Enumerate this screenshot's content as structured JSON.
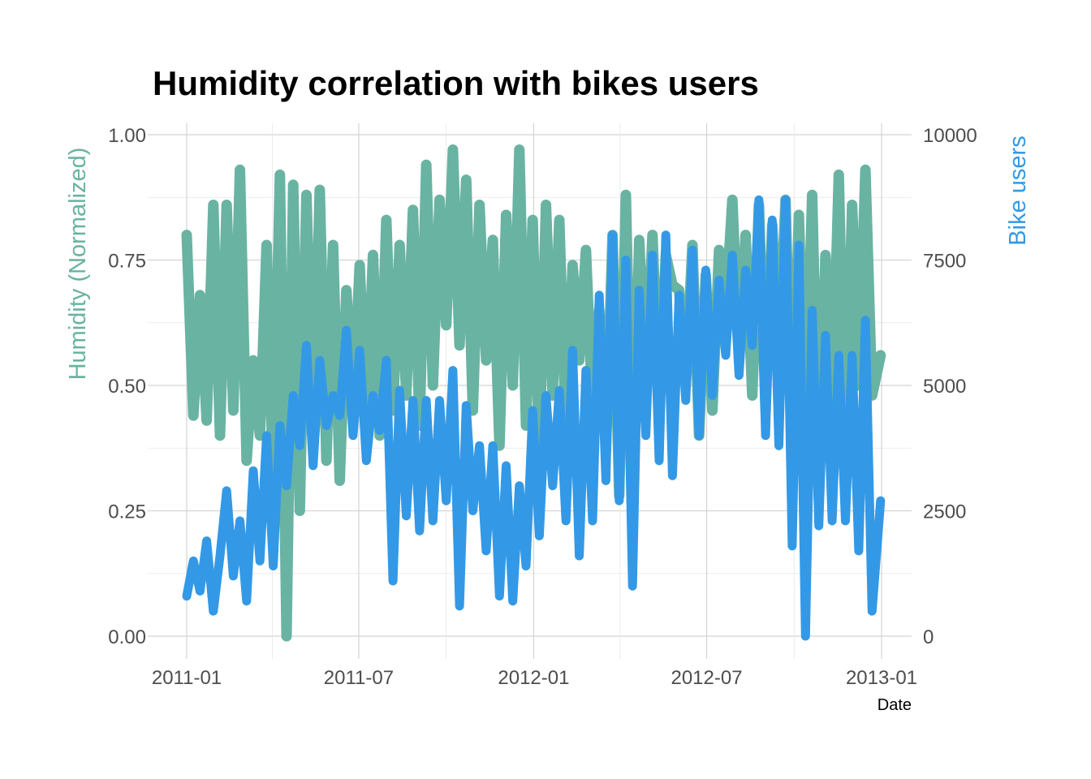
{
  "chart_data": {
    "type": "line",
    "title": "Humidity correlation with bikes users",
    "xlabel": "Date",
    "ylabel_left": "Humidity (Normalized)",
    "ylabel_right": "Bike users",
    "x_ticks": [
      "2011-01",
      "2011-07",
      "2012-01",
      "2012-07",
      "2013-01"
    ],
    "y_left_ticks": [
      "0.00",
      "0.25",
      "0.50",
      "0.75",
      "1.00"
    ],
    "y_right_ticks": [
      "0",
      "2500",
      "5000",
      "7500",
      "10000"
    ],
    "xlim": [
      "2011-01-01",
      "2013-01-01"
    ],
    "ylim_left": [
      0,
      1
    ],
    "ylim_right": [
      0,
      10000
    ],
    "grid": true,
    "colors": {
      "humidity": "#69b3a2",
      "bikes": "#3399e6",
      "right_axis_label": "#3399e6"
    },
    "series": [
      {
        "axis": "left",
        "color": "#69b3a2",
        "x": [
          "2011-01-01",
          "2011-01-08",
          "2011-01-15",
          "2011-01-22",
          "2011-01-29",
          "2011-02-05",
          "2011-02-12",
          "2011-02-19",
          "2011-02-26",
          "2011-03-05",
          "2011-03-12",
          "2011-03-19",
          "2011-03-26",
          "2011-04-02",
          "2011-04-09",
          "2011-04-16",
          "2011-04-23",
          "2011-04-30",
          "2011-05-07",
          "2011-05-14",
          "2011-05-21",
          "2011-05-28",
          "2011-06-04",
          "2011-06-11",
          "2011-06-18",
          "2011-06-25",
          "2011-07-02",
          "2011-07-09",
          "2011-07-16",
          "2011-07-23",
          "2011-07-30",
          "2011-08-06",
          "2011-08-13",
          "2011-08-20",
          "2011-08-27",
          "2011-09-03",
          "2011-09-10",
          "2011-09-17",
          "2011-09-24",
          "2011-10-01",
          "2011-10-08",
          "2011-10-15",
          "2011-10-22",
          "2011-10-29",
          "2011-11-05",
          "2011-11-12",
          "2011-11-19",
          "2011-11-26",
          "2011-12-03",
          "2011-12-10",
          "2011-12-17",
          "2011-12-24",
          "2011-12-31",
          "2012-01-07",
          "2012-01-14",
          "2012-01-21",
          "2012-01-28",
          "2012-02-04",
          "2012-02-11",
          "2012-02-18",
          "2012-02-25",
          "2012-03-03",
          "2012-03-10",
          "2012-03-17",
          "2012-03-24",
          "2012-03-31",
          "2012-04-07",
          "2012-04-14",
          "2012-04-21",
          "2012-04-28",
          "2012-05-05",
          "2012-05-12",
          "2012-05-19",
          "2012-05-26",
          "2012-06-02",
          "2012-06-09",
          "2012-06-16",
          "2012-06-23",
          "2012-06-30",
          "2012-07-07",
          "2012-07-14",
          "2012-07-21",
          "2012-07-28",
          "2012-08-04",
          "2012-08-11",
          "2012-08-18",
          "2012-08-25",
          "2012-09-01",
          "2012-09-08",
          "2012-09-15",
          "2012-09-22",
          "2012-09-29",
          "2012-10-06",
          "2012-10-13",
          "2012-10-20",
          "2012-10-27",
          "2012-11-03",
          "2012-11-10",
          "2012-11-17",
          "2012-11-24",
          "2012-12-01",
          "2012-12-08",
          "2012-12-15",
          "2012-12-22",
          "2012-12-31"
        ],
        "values": [
          0.8,
          0.44,
          0.68,
          0.43,
          0.86,
          0.4,
          0.86,
          0.45,
          0.93,
          0.35,
          0.55,
          0.4,
          0.78,
          0.3,
          0.92,
          0.0,
          0.9,
          0.25,
          0.88,
          0.38,
          0.89,
          0.35,
          0.78,
          0.31,
          0.69,
          0.45,
          0.74,
          0.42,
          0.76,
          0.4,
          0.83,
          0.45,
          0.78,
          0.48,
          0.85,
          0.42,
          0.94,
          0.5,
          0.87,
          0.62,
          0.97,
          0.58,
          0.91,
          0.45,
          0.86,
          0.55,
          0.79,
          0.38,
          0.84,
          0.5,
          0.97,
          0.42,
          0.83,
          0.36,
          0.86,
          0.48,
          0.83,
          0.4,
          0.74,
          0.55,
          0.77,
          0.45,
          0.65,
          0.37,
          0.8,
          0.28,
          0.88,
          0.25,
          0.79,
          0.5,
          0.8,
          0.45,
          0.76,
          0.7,
          0.69,
          0.5,
          0.78,
          0.4,
          0.72,
          0.45,
          0.77,
          0.65,
          0.87,
          0.55,
          0.8,
          0.48,
          0.86,
          0.45,
          0.82,
          0.55,
          0.87,
          0.35,
          0.84,
          0.4,
          0.88,
          0.3,
          0.76,
          0.45,
          0.92,
          0.32,
          0.86,
          0.5,
          0.93,
          0.48,
          0.56
        ]
      },
      {
        "axis": "right",
        "color": "#3399e6",
        "x": [
          "2011-01-01",
          "2011-01-08",
          "2011-01-15",
          "2011-01-22",
          "2011-01-29",
          "2011-02-05",
          "2011-02-12",
          "2011-02-19",
          "2011-02-26",
          "2011-03-05",
          "2011-03-12",
          "2011-03-19",
          "2011-03-26",
          "2011-04-02",
          "2011-04-09",
          "2011-04-16",
          "2011-04-23",
          "2011-04-30",
          "2011-05-07",
          "2011-05-14",
          "2011-05-21",
          "2011-05-28",
          "2011-06-04",
          "2011-06-11",
          "2011-06-18",
          "2011-06-25",
          "2011-07-02",
          "2011-07-09",
          "2011-07-16",
          "2011-07-23",
          "2011-07-30",
          "2011-08-06",
          "2011-08-13",
          "2011-08-20",
          "2011-08-27",
          "2011-09-03",
          "2011-09-10",
          "2011-09-17",
          "2011-09-24",
          "2011-10-01",
          "2011-10-08",
          "2011-10-15",
          "2011-10-22",
          "2011-10-29",
          "2011-11-05",
          "2011-11-12",
          "2011-11-19",
          "2011-11-26",
          "2011-12-03",
          "2011-12-10",
          "2011-12-17",
          "2011-12-24",
          "2011-12-31",
          "2012-01-07",
          "2012-01-14",
          "2012-01-21",
          "2012-01-28",
          "2012-02-04",
          "2012-02-11",
          "2012-02-18",
          "2012-02-25",
          "2012-03-03",
          "2012-03-10",
          "2012-03-17",
          "2012-03-24",
          "2012-03-31",
          "2012-04-07",
          "2012-04-14",
          "2012-04-21",
          "2012-04-28",
          "2012-05-05",
          "2012-05-12",
          "2012-05-19",
          "2012-05-26",
          "2012-06-02",
          "2012-06-09",
          "2012-06-16",
          "2012-06-23",
          "2012-06-30",
          "2012-07-07",
          "2012-07-14",
          "2012-07-21",
          "2012-07-28",
          "2012-08-04",
          "2012-08-11",
          "2012-08-18",
          "2012-08-25",
          "2012-09-01",
          "2012-09-08",
          "2012-09-15",
          "2012-09-22",
          "2012-09-29",
          "2012-10-06",
          "2012-10-13",
          "2012-10-20",
          "2012-10-27",
          "2012-11-03",
          "2012-11-10",
          "2012-11-17",
          "2012-11-24",
          "2012-12-01",
          "2012-12-08",
          "2012-12-15",
          "2012-12-22",
          "2012-12-31"
        ],
        "values": [
          800,
          1500,
          900,
          1900,
          500,
          1600,
          2900,
          1200,
          2300,
          700,
          3300,
          1500,
          4000,
          1400,
          4200,
          3000,
          4800,
          3800,
          5800,
          3400,
          5500,
          4200,
          4800,
          4400,
          6100,
          4000,
          5700,
          3500,
          4800,
          4100,
          5500,
          1100,
          4900,
          2400,
          4700,
          2100,
          4700,
          2300,
          4700,
          2700,
          5300,
          600,
          4600,
          2500,
          3800,
          1700,
          3800,
          800,
          3400,
          700,
          3000,
          1400,
          4500,
          2000,
          4800,
          3000,
          4900,
          2300,
          5700,
          1600,
          5300,
          2300,
          6800,
          3100,
          8000,
          2700,
          7500,
          1000,
          6900,
          4000,
          7600,
          3500,
          8000,
          3200,
          6800,
          4700,
          7700,
          4000,
          7300,
          4800,
          7100,
          5600,
          7600,
          5200,
          7300,
          5800,
          8700,
          4000,
          8300,
          3800,
          8700,
          1800,
          7800,
          0,
          6500,
          2200,
          6000,
          2300,
          5600,
          2300,
          5600,
          1700,
          6300,
          500,
          2700
        ]
      }
    ]
  }
}
